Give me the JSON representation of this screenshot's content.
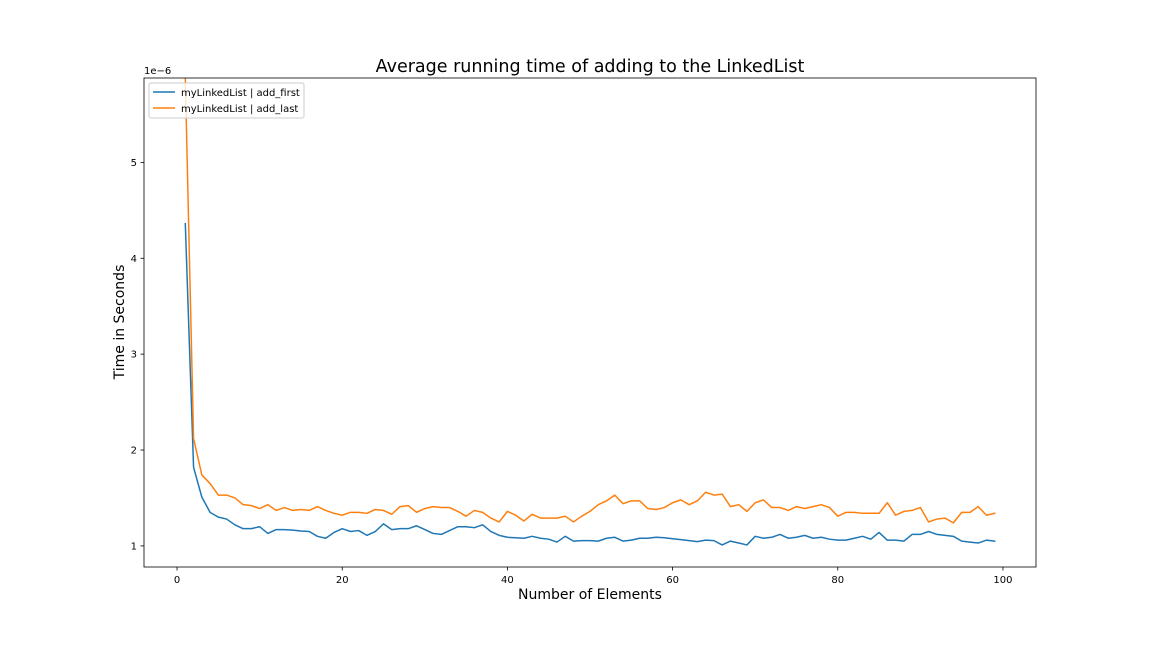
{
  "chart_data": {
    "type": "line",
    "title": "Average running time of adding to the LinkedList",
    "xlabel": "Number of Elements",
    "ylabel": "Time in Seconds",
    "y_offset_text": "1e−6",
    "xlim": [
      -4,
      104
    ],
    "ylim": [
      0.78,
      5.88
    ],
    "x_ticks": [
      0,
      20,
      40,
      60,
      80,
      100
    ],
    "y_ticks": [
      1,
      2,
      3,
      4,
      5
    ],
    "grid": false,
    "legend_position": "top-left",
    "x": [
      1,
      2,
      3,
      4,
      5,
      6,
      7,
      8,
      9,
      10,
      11,
      12,
      13,
      14,
      15,
      16,
      17,
      18,
      19,
      20,
      21,
      22,
      23,
      24,
      25,
      26,
      27,
      28,
      29,
      30,
      31,
      32,
      33,
      34,
      35,
      36,
      37,
      38,
      39,
      40,
      41,
      42,
      43,
      44,
      45,
      46,
      47,
      48,
      49,
      50,
      51,
      52,
      53,
      54,
      55,
      56,
      57,
      58,
      59,
      60,
      61,
      62,
      63,
      64,
      65,
      66,
      67,
      68,
      69,
      70,
      71,
      72,
      73,
      74,
      75,
      76,
      77,
      78,
      79,
      80,
      81,
      82,
      83,
      84,
      85,
      86,
      87,
      88,
      89,
      90,
      91,
      92,
      93,
      94,
      95,
      96,
      97,
      98,
      99
    ],
    "series": [
      {
        "name": "myLinkedList | add_first",
        "color": "#1f77b4",
        "values": [
          4.36,
          1.82,
          1.51,
          1.35,
          1.3,
          1.28,
          1.22,
          1.18,
          1.18,
          1.2,
          1.13,
          1.17,
          1.17,
          1.165,
          1.155,
          1.15,
          1.1,
          1.08,
          1.14,
          1.18,
          1.15,
          1.16,
          1.11,
          1.15,
          1.23,
          1.17,
          1.18,
          1.18,
          1.21,
          1.17,
          1.13,
          1.12,
          1.16,
          1.2,
          1.2,
          1.19,
          1.22,
          1.15,
          1.11,
          1.09,
          1.085,
          1.08,
          1.1,
          1.08,
          1.07,
          1.04,
          1.1,
          1.05,
          1.055,
          1.055,
          1.05,
          1.08,
          1.09,
          1.05,
          1.06,
          1.08,
          1.08,
          1.09,
          1.085,
          1.075,
          1.065,
          1.055,
          1.045,
          1.06,
          1.055,
          1.01,
          1.05,
          1.03,
          1.01,
          1.1,
          1.08,
          1.09,
          1.12,
          1.08,
          1.09,
          1.11,
          1.08,
          1.09,
          1.07,
          1.06,
          1.06,
          1.08,
          1.1,
          1.07,
          1.14,
          1.06,
          1.06,
          1.05,
          1.12,
          1.12,
          1.15,
          1.12,
          1.11,
          1.1,
          1.05,
          1.04,
          1.03,
          1.06,
          1.05
        ]
      },
      {
        "name": "myLinkedList | add_last",
        "color": "#ff7f0e",
        "values": [
          5.88,
          2.12,
          1.74,
          1.65,
          1.53,
          1.53,
          1.5,
          1.43,
          1.42,
          1.39,
          1.43,
          1.37,
          1.4,
          1.37,
          1.38,
          1.37,
          1.41,
          1.37,
          1.34,
          1.32,
          1.35,
          1.35,
          1.34,
          1.38,
          1.37,
          1.33,
          1.41,
          1.42,
          1.35,
          1.39,
          1.41,
          1.4,
          1.4,
          1.36,
          1.31,
          1.37,
          1.35,
          1.29,
          1.25,
          1.36,
          1.32,
          1.26,
          1.33,
          1.29,
          1.29,
          1.29,
          1.31,
          1.25,
          1.31,
          1.36,
          1.43,
          1.47,
          1.53,
          1.44,
          1.47,
          1.47,
          1.39,
          1.38,
          1.4,
          1.45,
          1.48,
          1.43,
          1.47,
          1.56,
          1.53,
          1.54,
          1.41,
          1.43,
          1.36,
          1.45,
          1.48,
          1.4,
          1.4,
          1.37,
          1.41,
          1.39,
          1.41,
          1.43,
          1.4,
          1.31,
          1.35,
          1.35,
          1.34,
          1.34,
          1.34,
          1.45,
          1.32,
          1.36,
          1.37,
          1.4,
          1.25,
          1.28,
          1.29,
          1.24,
          1.35,
          1.35,
          1.41,
          1.32,
          1.34
        ]
      }
    ]
  }
}
